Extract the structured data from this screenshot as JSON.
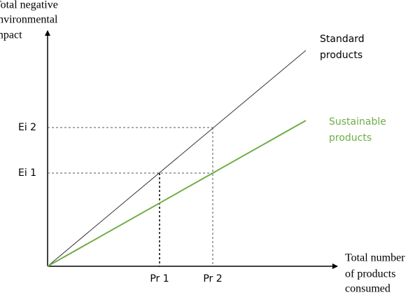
{
  "y_axis_label": [
    "Total negative",
    "environmental",
    "impact"
  ],
  "x_axis_label": [
    "Total number",
    "of products",
    "consumed"
  ],
  "lines": [
    {
      "label": [
        "Standard",
        "products"
      ]
    },
    {
      "label": [
        "Sustainable",
        "products"
      ]
    }
  ],
  "y_markers": [
    "Ei 2",
    "Ei 1"
  ],
  "x_markers": [
    "Pr 1",
    "Pr 2"
  ]
}
